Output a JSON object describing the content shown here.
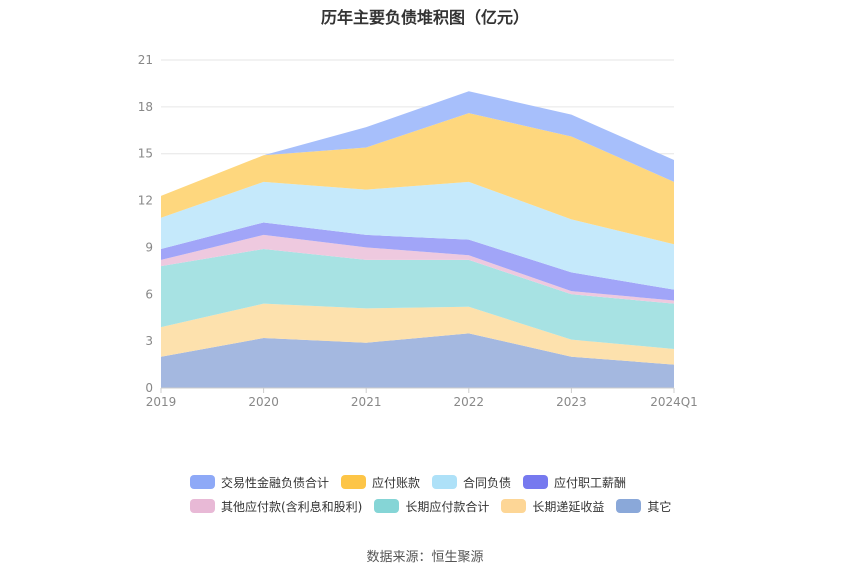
{
  "chart_data": {
    "type": "area",
    "stacked": true,
    "title": "历年主要负债堆积图（亿元）",
    "categories": [
      "2019",
      "2020",
      "2021",
      "2022",
      "2023",
      "2024Q1"
    ],
    "ylim": [
      0,
      21
    ],
    "yticks": [
      0,
      3,
      6,
      9,
      12,
      15,
      18,
      21
    ],
    "grid": true,
    "legend_position": "bottom",
    "series": [
      {
        "name": "其它",
        "color": "#a4b8e0",
        "values": [
          2.0,
          3.2,
          2.9,
          3.5,
          2.0,
          1.5
        ]
      },
      {
        "name": "长期递延收益",
        "color": "#fde1ad",
        "values": [
          1.9,
          2.2,
          2.2,
          1.7,
          1.1,
          1.0
        ]
      },
      {
        "name": "长期应付款合计",
        "color": "#a7e2e3",
        "values": [
          3.9,
          3.5,
          3.1,
          3.0,
          2.9,
          2.9
        ]
      },
      {
        "name": "其他应付款(含利息和股利)",
        "color": "#eec9df",
        "values": [
          0.4,
          0.9,
          0.8,
          0.3,
          0.2,
          0.2
        ]
      },
      {
        "name": "应付职工薪酬",
        "color": "#a1a5f8",
        "values": [
          0.7,
          0.8,
          0.8,
          1.0,
          1.2,
          0.7
        ]
      },
      {
        "name": "合同负债",
        "color": "#c5e9fb",
        "values": [
          2.0,
          2.6,
          2.9,
          3.7,
          3.4,
          2.9
        ]
      },
      {
        "name": "应付账款",
        "color": "#fed77e",
        "values": [
          1.4,
          1.7,
          2.7,
          4.4,
          5.3,
          4.0
        ]
      },
      {
        "name": "交易性金融负债合计",
        "color": "#a7bffb",
        "values": [
          0.0,
          0.0,
          1.3,
          1.4,
          1.4,
          1.4
        ]
      }
    ]
  },
  "legend_rows": [
    [
      {
        "label": "交易性金融负债合计",
        "color": "#8ea9f7"
      },
      {
        "label": "应付账款",
        "color": "#fdc547"
      },
      {
        "label": "合同负债",
        "color": "#aee1f8"
      },
      {
        "label": "应付职工薪酬",
        "color": "#7679ef"
      }
    ],
    [
      {
        "label": "其他应付款(含利息和股利)",
        "color": "#e8b9d6"
      },
      {
        "label": "长期应付款合计",
        "color": "#85d5d6"
      },
      {
        "label": "长期递延收益",
        "color": "#fdd696"
      },
      {
        "label": "其它",
        "color": "#8aa8d9"
      }
    ]
  ],
  "source": "数据来源：恒生聚源"
}
